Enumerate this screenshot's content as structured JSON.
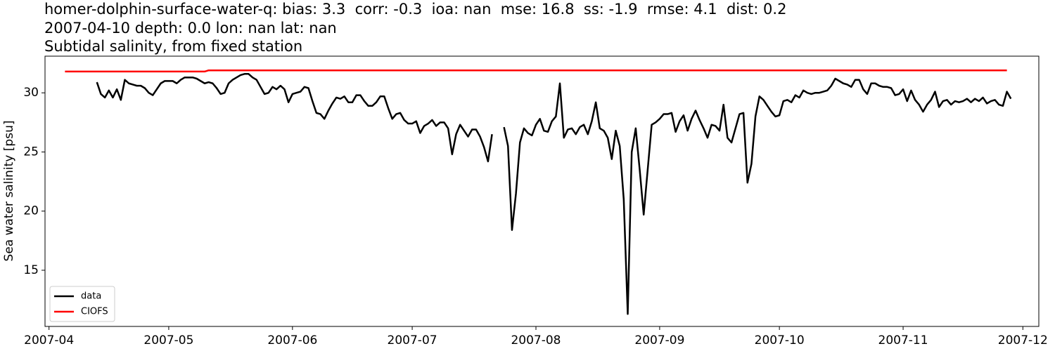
{
  "chart_data": {
    "type": "line",
    "title": [
      "homer-dolphin-surface-water-q: bias: 3.3  corr: -0.3  ioa: nan  mse: 16.8  ss: -1.9  rmse: 4.1  dist: 0.2",
      "2007-04-10 depth: 0.0 lon: nan lat: nan",
      "Subtidal salinity, from fixed station"
    ],
    "y_label": "Sea water salinity [psu]",
    "x": [
      "2007-04-05",
      "2007-04-06",
      "2007-04-07",
      "2007-04-08",
      "2007-04-09",
      "2007-04-10",
      "2007-04-11",
      "2007-04-12",
      "2007-04-13",
      "2007-04-14",
      "2007-04-15",
      "2007-04-16",
      "2007-04-17",
      "2007-04-18",
      "2007-04-19",
      "2007-04-20",
      "2007-04-21",
      "2007-04-22",
      "2007-04-23",
      "2007-04-24",
      "2007-04-25",
      "2007-04-26",
      "2007-04-27",
      "2007-04-28",
      "2007-04-29",
      "2007-04-30",
      "2007-05-01",
      "2007-05-02",
      "2007-05-03",
      "2007-05-04",
      "2007-05-05",
      "2007-05-06",
      "2007-05-07",
      "2007-05-08",
      "2007-05-09",
      "2007-05-10",
      "2007-05-11",
      "2007-05-12",
      "2007-05-13",
      "2007-05-14",
      "2007-05-15",
      "2007-05-16",
      "2007-05-17",
      "2007-05-18",
      "2007-05-19",
      "2007-05-20",
      "2007-05-21",
      "2007-05-22",
      "2007-05-23",
      "2007-05-24",
      "2007-05-25",
      "2007-05-26",
      "2007-05-27",
      "2007-05-28",
      "2007-05-29",
      "2007-05-30",
      "2007-05-31",
      "2007-06-01",
      "2007-06-02",
      "2007-06-03",
      "2007-06-04",
      "2007-06-05",
      "2007-06-06",
      "2007-06-07",
      "2007-06-08",
      "2007-06-09",
      "2007-06-10",
      "2007-06-11",
      "2007-06-12",
      "2007-06-13",
      "2007-06-14",
      "2007-06-15",
      "2007-06-16",
      "2007-06-17",
      "2007-06-18",
      "2007-06-19",
      "2007-06-20",
      "2007-06-21",
      "2007-06-22",
      "2007-06-23",
      "2007-06-24",
      "2007-06-25",
      "2007-06-26",
      "2007-06-27",
      "2007-06-28",
      "2007-06-29",
      "2007-06-30",
      "2007-07-01",
      "2007-07-02",
      "2007-07-03",
      "2007-07-04",
      "2007-07-05",
      "2007-07-06",
      "2007-07-07",
      "2007-07-08",
      "2007-07-09",
      "2007-07-10",
      "2007-07-11",
      "2007-07-12",
      "2007-07-13",
      "2007-07-14",
      "2007-07-15",
      "2007-07-16",
      "2007-07-17",
      "2007-07-18",
      "2007-07-19",
      "2007-07-20",
      "2007-07-21",
      "2007-07-22",
      "2007-07-23",
      "2007-07-24",
      "2007-07-25",
      "2007-07-26",
      "2007-07-27",
      "2007-07-28",
      "2007-07-29",
      "2007-07-30",
      "2007-07-31",
      "2007-08-01",
      "2007-08-02",
      "2007-08-03",
      "2007-08-04",
      "2007-08-05",
      "2007-08-06",
      "2007-08-07",
      "2007-08-08",
      "2007-08-09",
      "2007-08-10",
      "2007-08-11",
      "2007-08-12",
      "2007-08-13",
      "2007-08-14",
      "2007-08-15",
      "2007-08-16",
      "2007-08-17",
      "2007-08-18",
      "2007-08-19",
      "2007-08-20",
      "2007-08-21",
      "2007-08-22",
      "2007-08-23",
      "2007-08-24",
      "2007-08-25",
      "2007-08-26",
      "2007-08-27",
      "2007-08-28",
      "2007-08-29",
      "2007-08-30",
      "2007-08-31",
      "2007-09-01",
      "2007-09-02",
      "2007-09-03",
      "2007-09-04",
      "2007-09-05",
      "2007-09-06",
      "2007-09-07",
      "2007-09-08",
      "2007-09-09",
      "2007-09-10",
      "2007-09-11",
      "2007-09-12",
      "2007-09-13",
      "2007-09-14",
      "2007-09-15",
      "2007-09-16",
      "2007-09-17",
      "2007-09-18",
      "2007-09-19",
      "2007-09-20",
      "2007-09-21",
      "2007-09-22",
      "2007-09-23",
      "2007-09-24",
      "2007-09-25",
      "2007-09-26",
      "2007-09-27",
      "2007-09-28",
      "2007-09-29",
      "2007-09-30",
      "2007-10-01",
      "2007-10-02",
      "2007-10-03",
      "2007-10-04",
      "2007-10-05",
      "2007-10-06",
      "2007-10-07",
      "2007-10-08",
      "2007-10-09",
      "2007-10-10",
      "2007-10-11",
      "2007-10-12",
      "2007-10-13",
      "2007-10-14",
      "2007-10-15",
      "2007-10-16",
      "2007-10-17",
      "2007-10-18",
      "2007-10-19",
      "2007-10-20",
      "2007-10-21",
      "2007-10-22",
      "2007-10-23",
      "2007-10-24",
      "2007-10-25",
      "2007-10-26",
      "2007-10-27",
      "2007-10-28",
      "2007-10-29",
      "2007-10-30",
      "2007-10-31",
      "2007-11-01",
      "2007-11-02",
      "2007-11-03",
      "2007-11-04",
      "2007-11-05",
      "2007-11-06",
      "2007-11-07",
      "2007-11-08",
      "2007-11-09",
      "2007-11-10",
      "2007-11-11",
      "2007-11-12",
      "2007-11-13",
      "2007-11-14",
      "2007-11-15",
      "2007-11-16",
      "2007-11-17",
      "2007-11-18",
      "2007-11-19",
      "2007-11-20",
      "2007-11-21",
      "2007-11-22",
      "2007-11-23",
      "2007-11-24",
      "2007-11-25",
      "2007-11-26",
      "2007-11-27",
      "2007-11-28"
    ],
    "series": [
      {
        "name": "data",
        "color": "#000000",
        "values": [
          null,
          null,
          null,
          null,
          null,
          null,
          null,
          null,
          30.9,
          29.9,
          29.6,
          30.2,
          29.6,
          30.3,
          29.4,
          31.1,
          30.8,
          30.7,
          30.6,
          30.6,
          30.4,
          30.0,
          29.8,
          30.3,
          30.8,
          31.0,
          31.0,
          31.0,
          30.8,
          31.1,
          31.3,
          31.3,
          31.3,
          31.2,
          31.0,
          30.8,
          30.9,
          30.8,
          30.4,
          29.9,
          30.0,
          30.8,
          31.1,
          31.3,
          31.5,
          31.6,
          31.6,
          31.3,
          31.1,
          30.5,
          29.9,
          30.0,
          30.5,
          30.3,
          30.6,
          30.3,
          29.2,
          29.9,
          30.0,
          30.1,
          30.5,
          30.4,
          29.3,
          28.3,
          28.2,
          27.8,
          28.5,
          29.1,
          29.6,
          29.5,
          29.7,
          29.2,
          29.2,
          29.8,
          29.8,
          29.3,
          28.9,
          28.9,
          29.2,
          29.7,
          29.7,
          28.7,
          27.8,
          28.2,
          28.3,
          27.7,
          27.4,
          27.4,
          27.6,
          26.6,
          27.2,
          27.4,
          27.7,
          27.2,
          27.5,
          27.5,
          27.0,
          24.8,
          26.5,
          27.3,
          26.8,
          26.3,
          26.9,
          26.9,
          26.3,
          25.4,
          24.2,
          26.5,
          null,
          null,
          27.1,
          25.5,
          18.4,
          21.5,
          25.8,
          27.0,
          26.6,
          26.4,
          27.3,
          27.8,
          26.8,
          26.7,
          27.6,
          28.0,
          30.8,
          26.2,
          26.9,
          27.0,
          26.5,
          27.1,
          27.3,
          26.5,
          27.6,
          29.2,
          27.0,
          26.8,
          26.2,
          24.4,
          26.8,
          25.5,
          21.0,
          11.3,
          25.0,
          27.0,
          23.5,
          19.7,
          23.5,
          27.3,
          27.5,
          27.8,
          28.2,
          28.2,
          28.3,
          26.7,
          27.6,
          28.1,
          26.8,
          27.8,
          28.5,
          27.7,
          27.0,
          26.2,
          27.3,
          27.2,
          26.8,
          29.0,
          26.2,
          25.8,
          27.0,
          28.2,
          28.3,
          22.4,
          24.0,
          28.0,
          29.7,
          29.4,
          28.9,
          28.4,
          28.0,
          28.1,
          29.3,
          29.4,
          29.2,
          29.8,
          29.6,
          30.2,
          30.0,
          29.9,
          30.0,
          30.0,
          30.1,
          30.2,
          30.6,
          31.2,
          31.0,
          30.8,
          30.7,
          30.5,
          31.1,
          31.1,
          30.3,
          29.9,
          30.8,
          30.8,
          30.6,
          30.5,
          30.5,
          30.4,
          29.8,
          29.9,
          30.3,
          29.3,
          30.2,
          29.4,
          29.0,
          28.4,
          29.0,
          29.4,
          30.1,
          28.8,
          29.3,
          29.4,
          29.0,
          29.3,
          29.2,
          29.3,
          29.5,
          29.2,
          29.5,
          29.3,
          29.6,
          29.1,
          29.3,
          29.4,
          29.0,
          28.9,
          30.1,
          29.5
        ]
      },
      {
        "name": "CIOFS",
        "color": "#ff0000",
        "values": [
          31.8,
          31.8,
          31.8,
          31.8,
          31.8,
          31.8,
          31.8,
          31.8,
          31.8,
          31.8,
          31.8,
          31.8,
          31.8,
          31.8,
          31.8,
          31.8,
          31.8,
          31.8,
          31.8,
          31.8,
          31.8,
          31.8,
          31.8,
          31.8,
          31.8,
          31.8,
          31.8,
          31.8,
          31.8,
          31.8,
          31.8,
          31.8,
          31.8,
          31.8,
          31.8,
          31.8,
          31.9,
          31.9,
          31.9,
          31.9,
          31.9,
          31.9,
          31.9,
          31.9,
          31.9,
          31.9,
          31.9,
          31.9,
          31.9,
          31.9,
          31.9,
          31.9,
          31.9,
          31.9,
          31.9,
          31.9,
          31.9,
          31.9,
          31.9,
          31.9,
          31.9,
          31.9,
          31.9,
          31.9,
          31.9,
          31.9,
          31.9,
          31.9,
          31.9,
          31.9,
          31.9,
          31.9,
          31.9,
          31.9,
          31.9,
          31.9,
          31.9,
          31.9,
          31.9,
          31.9,
          31.9,
          31.9,
          31.9,
          31.9,
          31.9,
          31.9,
          31.9,
          31.9,
          31.9,
          31.9,
          31.9,
          31.9,
          31.9,
          31.9,
          31.9,
          31.9,
          31.9,
          31.9,
          31.9,
          31.9,
          31.9,
          31.9,
          31.9,
          31.9,
          31.9,
          31.9,
          31.9,
          31.9,
          31.9,
          31.9,
          31.9,
          31.9,
          31.9,
          31.9,
          31.9,
          31.9,
          31.9,
          31.9,
          31.9,
          31.9,
          31.9,
          31.9,
          31.9,
          31.9,
          31.9,
          31.9,
          31.9,
          31.9,
          31.9,
          31.9,
          31.9,
          31.9,
          31.9,
          31.9,
          31.9,
          31.9,
          31.9,
          31.9,
          31.9,
          31.9,
          31.9,
          31.9,
          31.9,
          31.9,
          31.9,
          31.9,
          31.9,
          31.9,
          31.9,
          31.9,
          31.9,
          31.9,
          31.9,
          31.9,
          31.9,
          31.9,
          31.9,
          31.9,
          31.9,
          31.9,
          31.9,
          31.9,
          31.9,
          31.9,
          31.9,
          31.9,
          31.9,
          31.9,
          31.9,
          31.9,
          31.9,
          31.9,
          31.9,
          31.9,
          31.9,
          31.9,
          31.9,
          31.9,
          31.9,
          31.9,
          31.9,
          31.9,
          31.9,
          31.9,
          31.9,
          31.9,
          31.9,
          31.9,
          31.9,
          31.9,
          31.9,
          31.9,
          31.9,
          31.9,
          31.9,
          31.9,
          31.9,
          31.9,
          31.9,
          31.9,
          31.9,
          31.9,
          31.9,
          31.9,
          31.9,
          31.9,
          31.9,
          31.9,
          31.9,
          31.9,
          31.9,
          31.9,
          31.9,
          31.9,
          31.9,
          31.9,
          31.9,
          31.9,
          31.9,
          31.9,
          31.9,
          31.9,
          31.9,
          31.9,
          31.9,
          31.9,
          31.9,
          31.9,
          31.9,
          31.9,
          31.9,
          31.9,
          31.9,
          31.9,
          31.9,
          31.9,
          31.9,
          null
        ]
      }
    ],
    "xlim": [
      "2007-03-31",
      "2007-12-05"
    ],
    "xticks": [
      "2007-04",
      "2007-05",
      "2007-06",
      "2007-07",
      "2007-08",
      "2007-09",
      "2007-10",
      "2007-11",
      "2007-12"
    ],
    "ylim": [
      10.25,
      33.1
    ],
    "yticks": [
      15,
      20,
      25,
      30
    ],
    "grid": false,
    "legend": "lower left"
  }
}
